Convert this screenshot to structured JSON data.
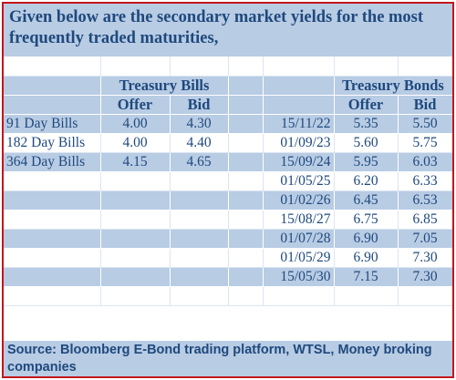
{
  "title": "Given below are the secondary market yields for the most frequently traded maturities,",
  "treasury_bills": {
    "heading": "Treasury Bills",
    "offer_label": "Offer",
    "bid_label": "Bid",
    "rows": [
      {
        "name": "91 Day Bills",
        "offer": "4.00",
        "bid": "4.30"
      },
      {
        "name": "182 Day Bills",
        "offer": "4.00",
        "bid": "4.40"
      },
      {
        "name": "364 Day Bills",
        "offer": "4.15",
        "bid": "4.65"
      }
    ]
  },
  "treasury_bonds": {
    "heading": "Treasury Bonds",
    "offer_label": "Offer",
    "bid_label": "Bid",
    "rows": [
      {
        "maturity": "15/11/22",
        "offer": "5.35",
        "bid": "5.50"
      },
      {
        "maturity": "01/09/23",
        "offer": "5.60",
        "bid": "5.75"
      },
      {
        "maturity": "15/09/24",
        "offer": "5.95",
        "bid": "6.03"
      },
      {
        "maturity": "01/05/25",
        "offer": "6.20",
        "bid": "6.33"
      },
      {
        "maturity": "01/02/26",
        "offer": "6.45",
        "bid": "6.53"
      },
      {
        "maturity": "15/08/27",
        "offer": "6.75",
        "bid": "6.85"
      },
      {
        "maturity": "01/07/28",
        "offer": "6.90",
        "bid": "7.05"
      },
      {
        "maturity": "01/05/29",
        "offer": "6.90",
        "bid": "7.30"
      },
      {
        "maturity": "15/05/30",
        "offer": "7.15",
        "bid": "7.30"
      }
    ]
  },
  "source": "Source: Bloomberg E-Bond trading platform, WTSL, Money broking companies",
  "colors": {
    "header_bg": "#b8cce4",
    "text": "#1f497d",
    "border": "#c4161c"
  }
}
